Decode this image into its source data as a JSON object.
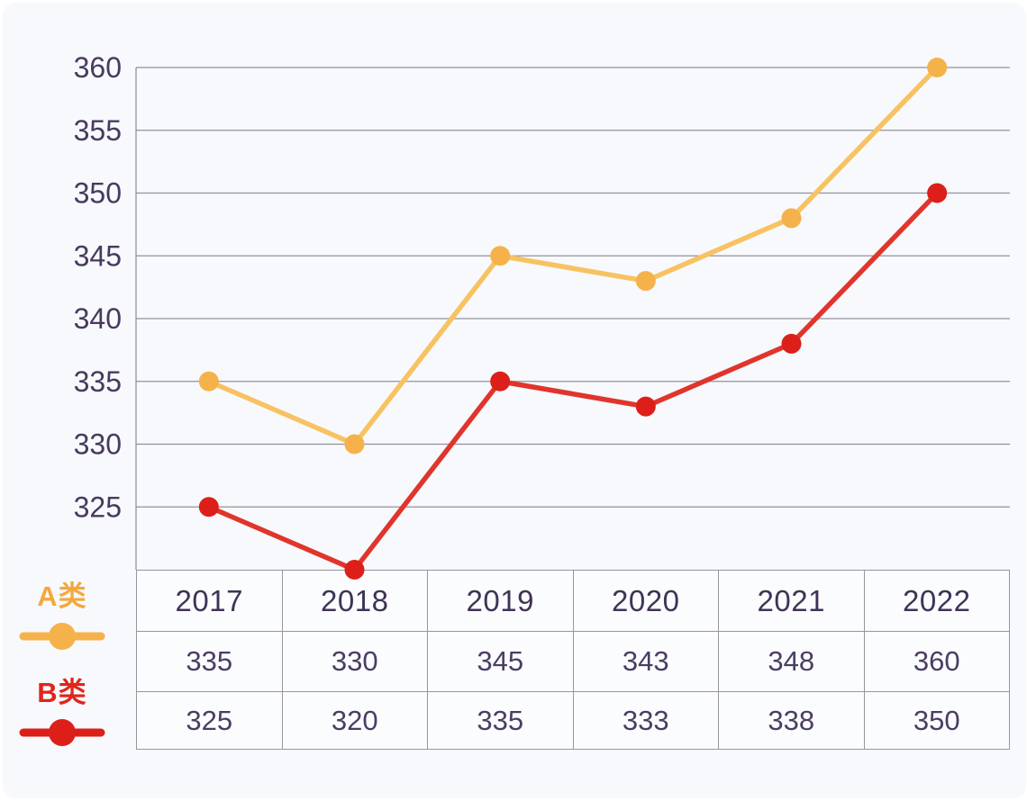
{
  "chart_data": {
    "type": "line",
    "x": [
      "2017",
      "2018",
      "2019",
      "2020",
      "2021",
      "2022"
    ],
    "series": [
      {
        "name": "A类",
        "values": [
          335,
          330,
          345,
          343,
          348,
          360
        ],
        "line_color": "#f8c262",
        "marker_color": "#f5b24a",
        "label_color": "#f3a83e"
      },
      {
        "name": "B类",
        "values": [
          325,
          320,
          335,
          333,
          338,
          350
        ],
        "line_color": "#e0352c",
        "marker_color": "#dd1f1a",
        "label_color": "#e0251a"
      }
    ],
    "y_ticks": [
      360,
      355,
      350,
      345,
      340,
      335,
      330,
      325
    ],
    "ylim": [
      320,
      360
    ],
    "xlabel": "",
    "ylabel": "",
    "title": "",
    "grid": true,
    "legend_position": "bottom-left",
    "tick_color": "#473a5f",
    "grid_color": "#93919c"
  },
  "table": {
    "header_color": "#3f3356",
    "value_color": "#4a3d63",
    "border_color": "#98959f",
    "cell_bg": "#fbfcfe"
  }
}
